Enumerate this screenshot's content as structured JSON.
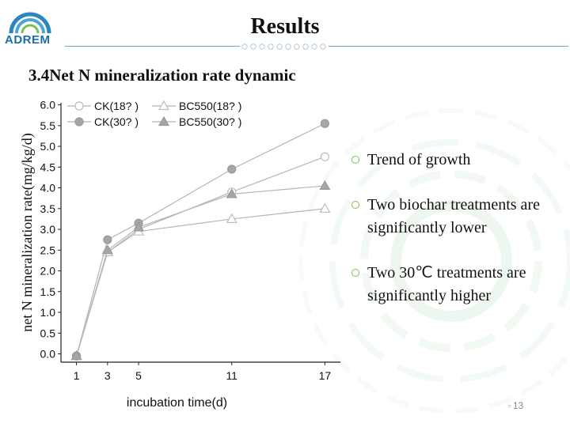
{
  "logo": {
    "text": "ADREM"
  },
  "title": "Results",
  "subtitle": "3.4Net N mineralization rate dynamic",
  "bullets": [
    {
      "text": "Trend of growth"
    },
    {
      "text": "Two biochar treatments are significantly lower"
    },
    {
      "text": "Two 30℃ treatments are significantly higher"
    }
  ],
  "page_number": "13",
  "colors": {
    "accent_rule": "#6aa9c9",
    "bullet_ring": "#7cc04a",
    "logo_blue": "#1a6fa8"
  },
  "icons": {
    "bullet": "ring-bullet-icon",
    "logo": "adrem-logo-icon"
  },
  "chart_data": {
    "type": "line",
    "title": "",
    "xlabel": "incubation time(d)",
    "ylabel": "net N mineralization rate(mg/kg/d)",
    "x": [
      1,
      3,
      5,
      11,
      17
    ],
    "x_ticks": [
      "1",
      "3",
      "5",
      "11",
      "17"
    ],
    "ylim": [
      0,
      6
    ],
    "y_ticks": [
      "0.0",
      "0.5",
      "1.0",
      "1.5",
      "2.0",
      "2.5",
      "3.0",
      "3.5",
      "4.0",
      "4.5",
      "5.0",
      "5.5",
      "6.0"
    ],
    "legend_position": "top-left",
    "series": [
      {
        "name": "CK(18? )",
        "marker": "circle-open",
        "values": [
          -0.05,
          2.45,
          3.0,
          3.9,
          4.75
        ]
      },
      {
        "name": "CK(30? )",
        "marker": "circle-filled",
        "values": [
          -0.05,
          2.75,
          3.15,
          4.45,
          5.55
        ]
      },
      {
        "name": "BC550(18? )",
        "marker": "triangle-open",
        "values": [
          -0.05,
          2.45,
          2.95,
          3.25,
          3.5
        ]
      },
      {
        "name": "BC550(30? )",
        "marker": "triangle-filled",
        "values": [
          -0.05,
          2.5,
          3.05,
          3.85,
          4.05
        ]
      }
    ]
  }
}
